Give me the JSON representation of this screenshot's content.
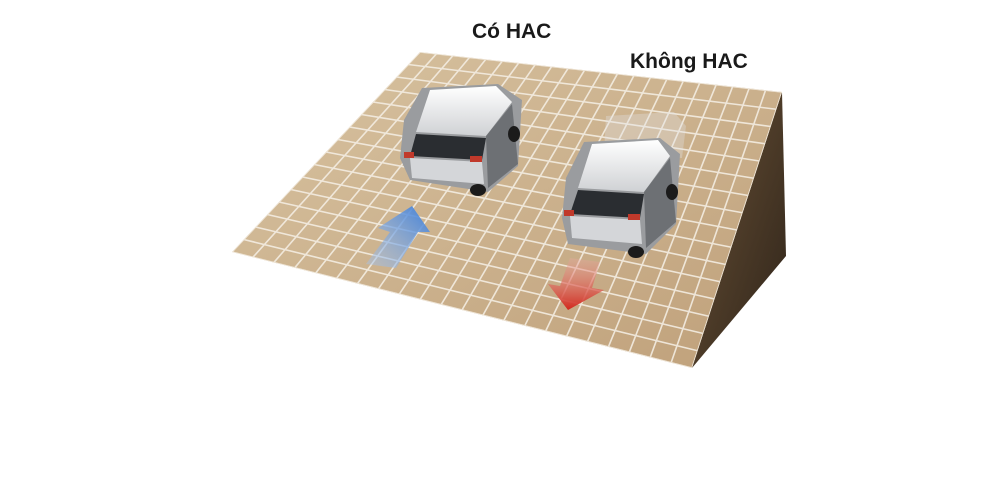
{
  "labels": {
    "with_hac": "Có HAC",
    "without_hac": "Không HAC"
  },
  "scene": {
    "surface_color": "#c9ae88",
    "grid_color": "#f3ede2",
    "slope_side_color": "#4a3a28",
    "car_body_color": "#e9eaec",
    "arrow_up_color": "#4f86d6",
    "arrow_down_color": "#d23a2c"
  }
}
